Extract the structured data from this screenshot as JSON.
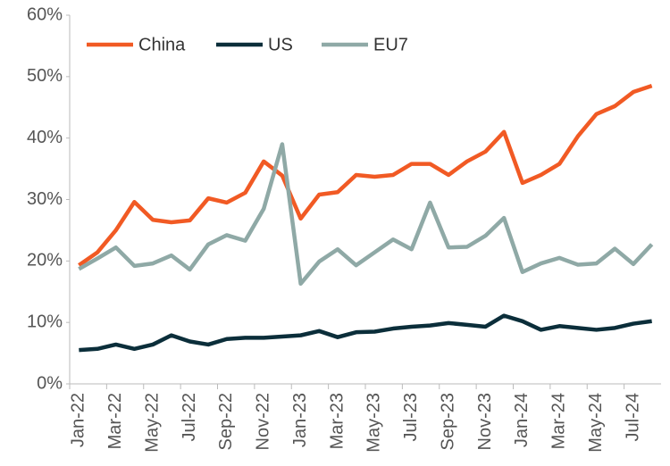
{
  "chart_data": {
    "type": "line",
    "categories": [
      "Jan-22",
      null,
      "Mar-22",
      null,
      "May-22",
      null,
      "Jul-22",
      null,
      "Sep-22",
      null,
      "Nov-22",
      null,
      "Jan-23",
      null,
      "Mar-23",
      null,
      "May-23",
      null,
      "Jul-23",
      null,
      "Sep-23",
      null,
      "Nov-23",
      null,
      "Jan-24",
      null,
      "Mar-24",
      null,
      "May-24",
      null,
      "Jul-24",
      null
    ],
    "series": [
      {
        "name": "China",
        "color": "#f15a24",
        "values": [
          19.3,
          21.4,
          25.0,
          29.6,
          26.7,
          26.3,
          26.6,
          30.2,
          29.5,
          31.1,
          36.2,
          33.9,
          26.9,
          30.8,
          31.2,
          34.0,
          33.7,
          34.0,
          35.8,
          35.8,
          34.0,
          36.2,
          37.8,
          41.0,
          32.7,
          34.0,
          35.8,
          40.3,
          43.9,
          45.2,
          47.5,
          48.5
        ]
      },
      {
        "name": "US",
        "color": "#0b2e3a",
        "values": [
          5.5,
          5.7,
          6.4,
          5.7,
          6.4,
          7.9,
          6.9,
          6.4,
          7.3,
          7.5,
          7.5,
          7.7,
          7.9,
          8.6,
          7.6,
          8.4,
          8.5,
          9.0,
          9.3,
          9.5,
          9.9,
          9.6,
          9.3,
          11.1,
          10.2,
          8.8,
          9.4,
          9.1,
          8.8,
          9.1,
          9.8,
          10.2
        ]
      },
      {
        "name": "EU7",
        "color": "#8fa9a6",
        "values": [
          18.7,
          20.4,
          22.2,
          19.2,
          19.6,
          20.9,
          18.6,
          22.7,
          24.2,
          23.3,
          28.5,
          39.0,
          16.3,
          19.9,
          21.9,
          19.3,
          21.4,
          23.5,
          21.9,
          29.5,
          22.2,
          22.3,
          24.1,
          27.0,
          18.2,
          19.6,
          20.5,
          19.4,
          19.6,
          22.0,
          19.5,
          22.7
        ]
      }
    ],
    "ylim": [
      0,
      60
    ],
    "yticks": [
      {
        "value": 0,
        "label": "0%"
      },
      {
        "value": 10,
        "label": "10%"
      },
      {
        "value": 20,
        "label": "20%"
      },
      {
        "value": 30,
        "label": "30%"
      },
      {
        "value": 40,
        "label": "40%"
      },
      {
        "value": 50,
        "label": "50%"
      },
      {
        "value": 60,
        "label": "60%"
      }
    ],
    "grid": false,
    "legend": "top-left"
  }
}
